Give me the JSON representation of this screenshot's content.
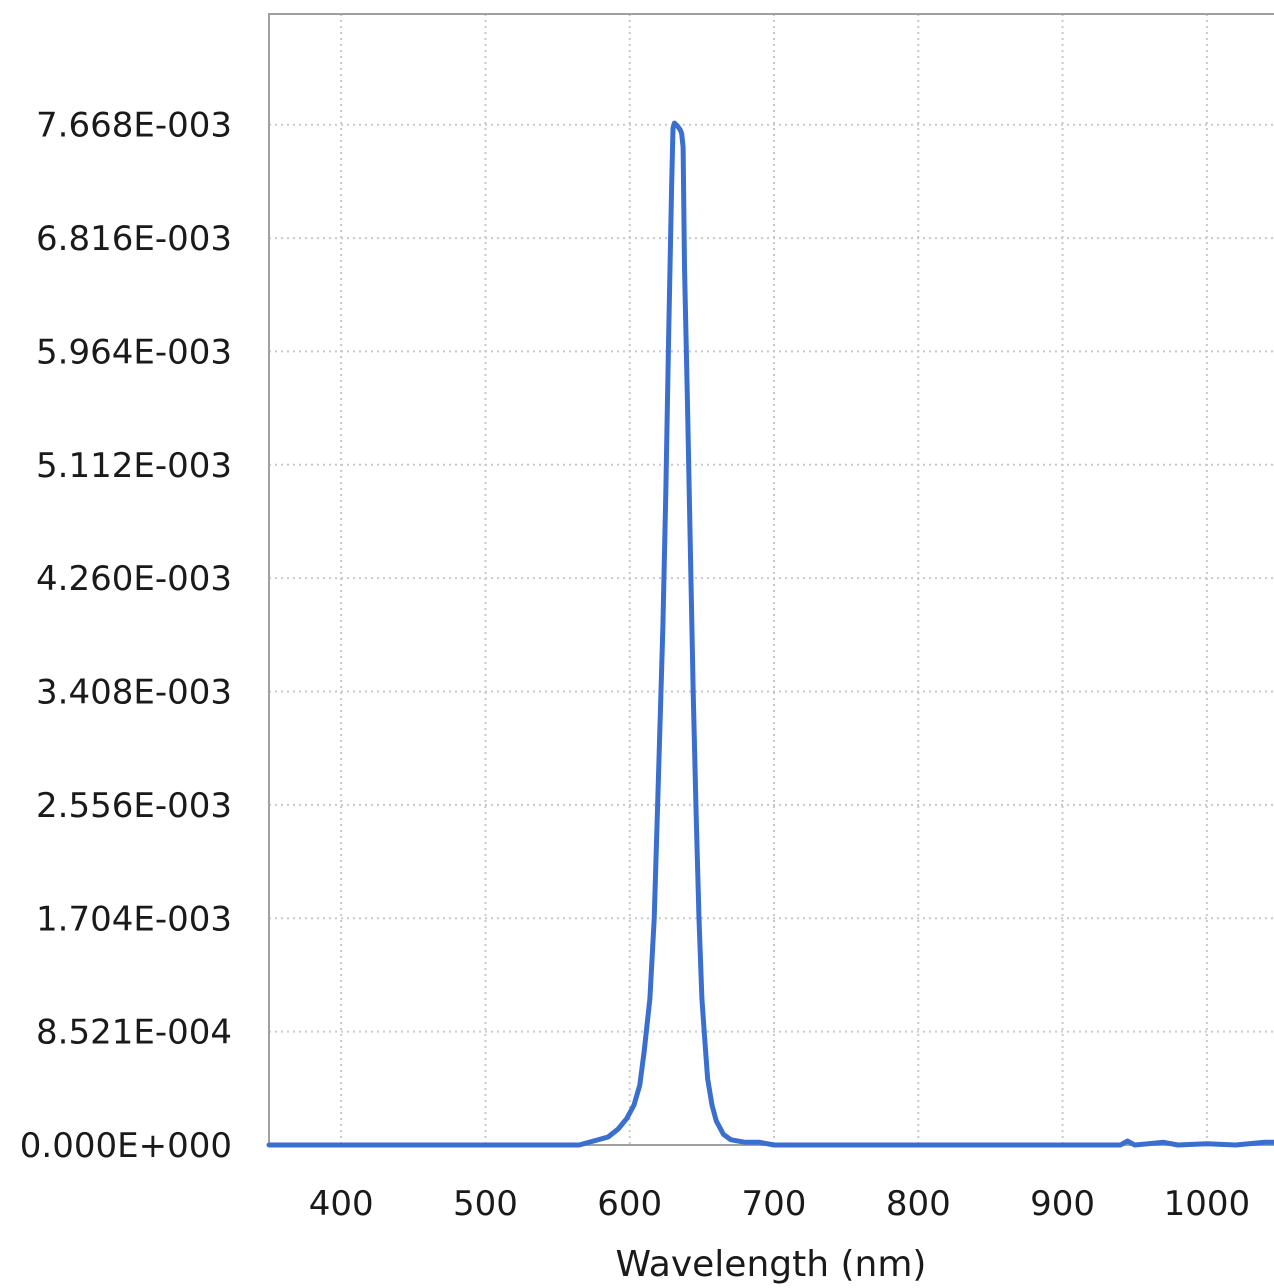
{
  "chart_data": {
    "type": "line",
    "title": "",
    "xlabel": "Wavelength (nm)",
    "ylabel": "",
    "xlim": [
      350,
      1050
    ],
    "ylim": [
      0,
      0.0085
    ],
    "grid": true,
    "legend": "none",
    "line_color": "#3a6fd0",
    "x_ticks": [
      {
        "value": 400,
        "label": "400"
      },
      {
        "value": 500,
        "label": "500"
      },
      {
        "value": 600,
        "label": "600"
      },
      {
        "value": 700,
        "label": "700"
      },
      {
        "value": 800,
        "label": "800"
      },
      {
        "value": 900,
        "label": "900"
      },
      {
        "value": 1000,
        "label": "1000"
      }
    ],
    "y_ticks": [
      {
        "value": 0,
        "label": "0.000E+000"
      },
      {
        "value": 0.0008521,
        "label": "8.521E-004"
      },
      {
        "value": 0.001704,
        "label": "1.704E-003"
      },
      {
        "value": 0.002556,
        "label": "2.556E-003"
      },
      {
        "value": 0.003408,
        "label": "3.408E-003"
      },
      {
        "value": 0.00426,
        "label": "4.260E-003"
      },
      {
        "value": 0.005112,
        "label": "5.112E-003"
      },
      {
        "value": 0.005964,
        "label": "5.964E-003"
      },
      {
        "value": 0.006816,
        "label": "6.816E-003"
      },
      {
        "value": 0.007668,
        "label": "7.668E-003"
      }
    ],
    "series": [
      {
        "x": [
          350,
          400,
          500,
          565,
          575,
          585,
          592,
          598,
          603,
          607,
          610,
          614,
          617,
          620,
          623,
          625,
          627,
          629,
          630,
          631,
          633,
          635,
          636,
          637,
          638,
          640,
          642,
          644,
          646,
          648,
          650,
          652,
          654,
          657,
          660,
          665,
          670,
          680,
          690,
          700,
          800,
          900,
          940,
          945,
          950,
          970,
          980,
          1000,
          1020,
          1040,
          1050
        ],
        "y": [
          0,
          0,
          0,
          0,
          3e-05,
          6e-05,
          0.00012,
          0.0002,
          0.0003,
          0.00045,
          0.0007,
          0.0011,
          0.0017,
          0.0028,
          0.0039,
          0.0049,
          0.0061,
          0.0072,
          0.00764,
          0.00768,
          0.00766,
          0.00763,
          0.0076,
          0.0075,
          0.0066,
          0.0056,
          0.0045,
          0.0034,
          0.0025,
          0.0017,
          0.0011,
          0.0008,
          0.0005,
          0.0003,
          0.00018,
          8e-05,
          4e-05,
          2e-05,
          2e-05,
          0,
          0,
          0,
          0,
          3e-05,
          0,
          2e-05,
          0,
          1e-05,
          0,
          2e-05,
          2e-05
        ]
      }
    ]
  }
}
